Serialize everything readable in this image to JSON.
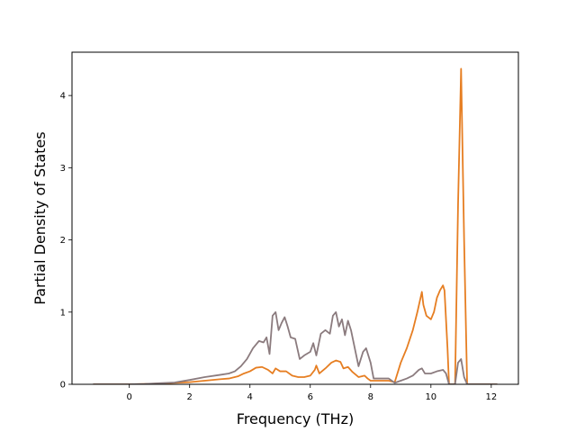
{
  "chart_data": {
    "type": "line",
    "title": "",
    "xlabel": "Frequency (THz)",
    "ylabel": "Partial Density of States",
    "xlim": [
      -1.9,
      12.9
    ],
    "ylim": [
      0,
      4.6
    ],
    "xticks": [
      0,
      2,
      4,
      6,
      8,
      10,
      12
    ],
    "yticks": [
      0,
      1,
      2,
      3,
      4
    ],
    "grid": false,
    "legend": "none",
    "series": [
      {
        "color": "#E67E22",
        "points": [
          [
            -1.2,
            0
          ],
          [
            0,
            0
          ],
          [
            0.5,
            0.005
          ],
          [
            1,
            0.01
          ],
          [
            1.5,
            0.02
          ],
          [
            2,
            0.03
          ],
          [
            2.5,
            0.05
          ],
          [
            3,
            0.07
          ],
          [
            3.3,
            0.08
          ],
          [
            3.6,
            0.11
          ],
          [
            3.8,
            0.15
          ],
          [
            4.0,
            0.18
          ],
          [
            4.2,
            0.23
          ],
          [
            4.4,
            0.24
          ],
          [
            4.6,
            0.2
          ],
          [
            4.75,
            0.15
          ],
          [
            4.85,
            0.22
          ],
          [
            5.0,
            0.18
          ],
          [
            5.2,
            0.18
          ],
          [
            5.4,
            0.12
          ],
          [
            5.6,
            0.1
          ],
          [
            5.8,
            0.1
          ],
          [
            6.0,
            0.12
          ],
          [
            6.15,
            0.2
          ],
          [
            6.2,
            0.26
          ],
          [
            6.3,
            0.15
          ],
          [
            6.5,
            0.22
          ],
          [
            6.7,
            0.3
          ],
          [
            6.85,
            0.33
          ],
          [
            7.0,
            0.31
          ],
          [
            7.1,
            0.22
          ],
          [
            7.25,
            0.24
          ],
          [
            7.4,
            0.17
          ],
          [
            7.6,
            0.1
          ],
          [
            7.8,
            0.12
          ],
          [
            7.9,
            0.08
          ],
          [
            8.0,
            0.05
          ],
          [
            8.3,
            0.05
          ],
          [
            8.6,
            0.05
          ],
          [
            8.8,
            0.03
          ],
          [
            9.0,
            0.3
          ],
          [
            9.2,
            0.5
          ],
          [
            9.4,
            0.75
          ],
          [
            9.55,
            1.0
          ],
          [
            9.7,
            1.28
          ],
          [
            9.75,
            1.1
          ],
          [
            9.85,
            0.95
          ],
          [
            10.0,
            0.9
          ],
          [
            10.1,
            1.0
          ],
          [
            10.2,
            1.2
          ],
          [
            10.3,
            1.3
          ],
          [
            10.4,
            1.37
          ],
          [
            10.45,
            1.3
          ],
          [
            10.55,
            0.5
          ],
          [
            10.6,
            0
          ],
          [
            10.8,
            0
          ],
          [
            10.9,
            2.5
          ],
          [
            11.0,
            4.37
          ],
          [
            11.1,
            2.0
          ],
          [
            11.2,
            0
          ],
          [
            12.2,
            0
          ]
        ]
      },
      {
        "color": "#8B7B7E",
        "points": [
          [
            -1.2,
            0
          ],
          [
            0,
            0
          ],
          [
            0.5,
            0.005
          ],
          [
            1,
            0.015
          ],
          [
            1.5,
            0.025
          ],
          [
            2,
            0.06
          ],
          [
            2.5,
            0.1
          ],
          [
            3,
            0.13
          ],
          [
            3.3,
            0.15
          ],
          [
            3.5,
            0.18
          ],
          [
            3.7,
            0.25
          ],
          [
            3.9,
            0.35
          ],
          [
            4.1,
            0.5
          ],
          [
            4.3,
            0.6
          ],
          [
            4.45,
            0.58
          ],
          [
            4.55,
            0.65
          ],
          [
            4.65,
            0.42
          ],
          [
            4.75,
            0.95
          ],
          [
            4.85,
            1.0
          ],
          [
            4.95,
            0.75
          ],
          [
            5.05,
            0.85
          ],
          [
            5.15,
            0.93
          ],
          [
            5.25,
            0.8
          ],
          [
            5.35,
            0.65
          ],
          [
            5.5,
            0.63
          ],
          [
            5.65,
            0.35
          ],
          [
            5.8,
            0.4
          ],
          [
            6.0,
            0.45
          ],
          [
            6.1,
            0.57
          ],
          [
            6.2,
            0.4
          ],
          [
            6.35,
            0.7
          ],
          [
            6.5,
            0.75
          ],
          [
            6.65,
            0.7
          ],
          [
            6.75,
            0.95
          ],
          [
            6.85,
            1.0
          ],
          [
            6.95,
            0.8
          ],
          [
            7.05,
            0.9
          ],
          [
            7.15,
            0.68
          ],
          [
            7.25,
            0.88
          ],
          [
            7.35,
            0.75
          ],
          [
            7.5,
            0.45
          ],
          [
            7.6,
            0.25
          ],
          [
            7.75,
            0.45
          ],
          [
            7.85,
            0.5
          ],
          [
            8.0,
            0.3
          ],
          [
            8.1,
            0.08
          ],
          [
            8.3,
            0.08
          ],
          [
            8.6,
            0.08
          ],
          [
            8.8,
            0.02
          ],
          [
            9.0,
            0.05
          ],
          [
            9.2,
            0.08
          ],
          [
            9.4,
            0.12
          ],
          [
            9.6,
            0.2
          ],
          [
            9.7,
            0.22
          ],
          [
            9.8,
            0.15
          ],
          [
            10.0,
            0.15
          ],
          [
            10.2,
            0.18
          ],
          [
            10.4,
            0.2
          ],
          [
            10.5,
            0.15
          ],
          [
            10.6,
            0
          ],
          [
            10.8,
            0
          ],
          [
            10.9,
            0.3
          ],
          [
            11.0,
            0.35
          ],
          [
            11.1,
            0.1
          ],
          [
            11.2,
            0
          ],
          [
            12.2,
            0
          ]
        ]
      }
    ]
  }
}
